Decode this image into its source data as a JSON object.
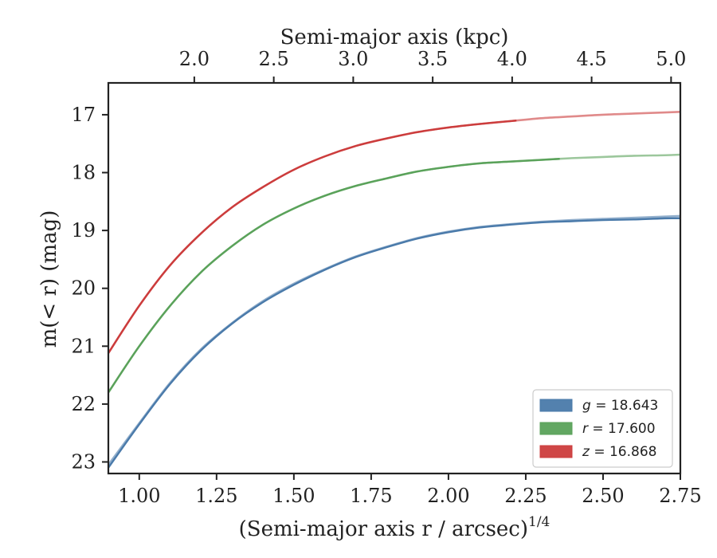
{
  "chart_data": {
    "type": "line",
    "xlabel": "(Semi-major axis r / arcsec)",
    "xlabel_sup": "1/4",
    "ylabel": "m(< r) (mag)",
    "top_xlabel": "Semi-major axis (kpc)",
    "xlim": [
      0.9,
      2.75
    ],
    "ylim": [
      23.2,
      16.45
    ],
    "y_inverted": true,
    "xticks": [
      1.0,
      1.25,
      1.5,
      1.75,
      2.0,
      2.25,
      2.5,
      2.75
    ],
    "xtick_labels": [
      "1.00",
      "1.25",
      "1.50",
      "1.75",
      "2.00",
      "2.25",
      "2.50",
      "2.75"
    ],
    "yticks": [
      17,
      18,
      19,
      20,
      21,
      22,
      23
    ],
    "ytick_labels": [
      "17",
      "18",
      "19",
      "20",
      "21",
      "22",
      "23"
    ],
    "top_xticks": [
      2.0,
      2.5,
      3.0,
      3.5,
      4.0,
      4.5,
      5.0
    ],
    "top_xtick_labels": [
      "2.0",
      "2.5",
      "3.0",
      "3.5",
      "4.0",
      "4.5",
      "5.0"
    ],
    "top_xtick_positions": [
      1.178,
      1.435,
      1.692,
      1.949,
      2.206,
      2.463,
      2.72
    ],
    "grid": false,
    "legend_position": "lower-right",
    "series": [
      {
        "name": "g = 18.643",
        "legend_var": "g",
        "legend_value": "18.643",
        "color": "#4a7aaa",
        "x": [
          0.9,
          1.0,
          1.1,
          1.2,
          1.3,
          1.4,
          1.5,
          1.6,
          1.7,
          1.8,
          1.9,
          2.0,
          2.1,
          2.2,
          2.3,
          2.4,
          2.5,
          2.6,
          2.7,
          2.75
        ],
        "fit": [
          23.05,
          22.33,
          21.63,
          21.05,
          20.6,
          20.22,
          19.92,
          19.67,
          19.45,
          19.28,
          19.13,
          19.02,
          18.94,
          18.89,
          18.85,
          18.82,
          18.8,
          18.78,
          18.76,
          18.75
        ],
        "data": [
          23.1,
          22.35,
          21.65,
          21.07,
          20.61,
          20.24,
          19.94,
          19.68,
          19.46,
          19.29,
          19.14,
          19.03,
          18.95,
          18.9,
          18.86,
          18.84,
          18.82,
          18.81,
          18.79,
          18.79
        ]
      },
      {
        "name": "r = 17.600",
        "legend_var": "r",
        "legend_value": "17.600",
        "color": "#5aa25a",
        "x": [
          0.9,
          1.0,
          1.1,
          1.2,
          1.3,
          1.4,
          1.5,
          1.6,
          1.7,
          1.8,
          1.9,
          2.0,
          2.1,
          2.2,
          2.3,
          2.4,
          2.5,
          2.6,
          2.7,
          2.75
        ],
        "fit": [
          21.8,
          21.0,
          20.3,
          19.72,
          19.27,
          18.9,
          18.62,
          18.4,
          18.23,
          18.1,
          17.98,
          17.9,
          17.84,
          17.81,
          17.78,
          17.75,
          17.73,
          17.71,
          17.7,
          17.69
        ],
        "data_end_x": 2.36
      },
      {
        "name": "z = 16.868",
        "legend_var": "z",
        "legend_value": "16.868",
        "color": "#cc3c3c",
        "x": [
          0.9,
          1.0,
          1.1,
          1.2,
          1.3,
          1.4,
          1.5,
          1.6,
          1.7,
          1.8,
          1.9,
          2.0,
          2.1,
          2.2,
          2.3,
          2.4,
          2.5,
          2.6,
          2.7,
          2.75
        ],
        "fit": [
          21.12,
          20.3,
          19.6,
          19.05,
          18.6,
          18.25,
          17.95,
          17.72,
          17.54,
          17.41,
          17.3,
          17.22,
          17.16,
          17.11,
          17.06,
          17.03,
          17.0,
          16.98,
          16.96,
          16.95
        ],
        "data_end_x": 2.22
      }
    ]
  }
}
